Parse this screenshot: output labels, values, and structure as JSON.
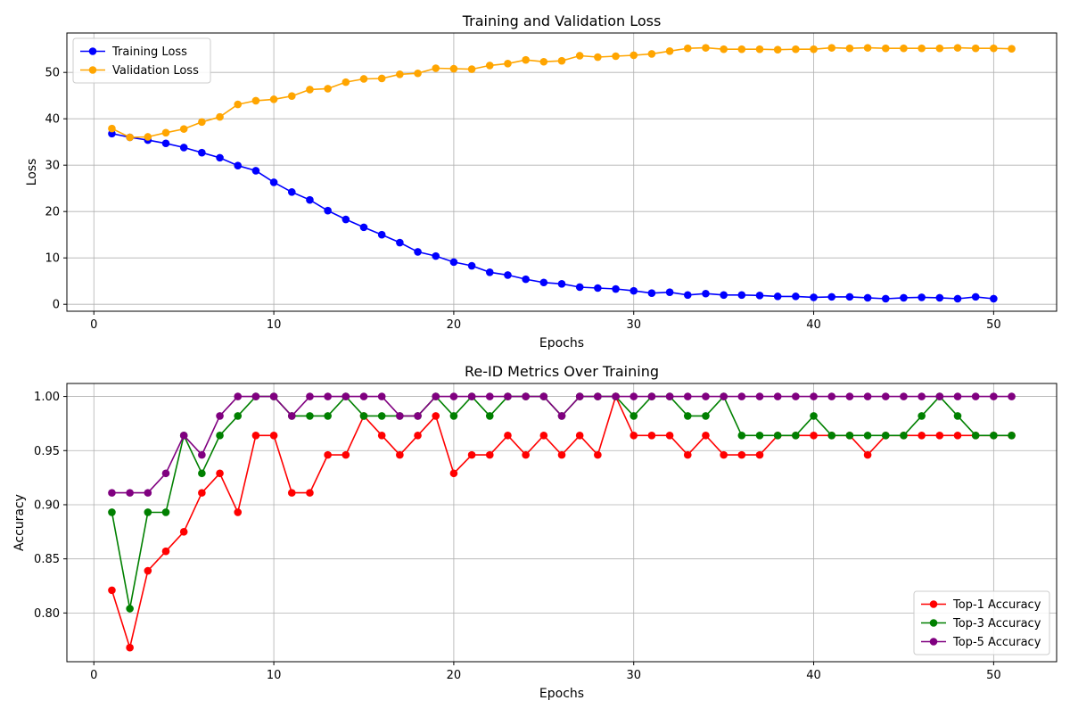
{
  "chart_data": [
    {
      "type": "line",
      "title": "Training and Validation Loss",
      "xlabel": "Epochs",
      "ylabel": "Loss",
      "xlim": [
        -1.5,
        53.5
      ],
      "ylim": [
        -1.5,
        58.5
      ],
      "xticks": [
        0,
        10,
        20,
        30,
        40,
        50
      ],
      "yticks": [
        0,
        10,
        20,
        30,
        40,
        50
      ],
      "grid": true,
      "legend": "top-left",
      "x": [
        1,
        2,
        3,
        4,
        5,
        6,
        7,
        8,
        9,
        10,
        11,
        12,
        13,
        14,
        15,
        16,
        17,
        18,
        19,
        20,
        21,
        22,
        23,
        24,
        25,
        26,
        27,
        28,
        29,
        30,
        31,
        32,
        33,
        34,
        35,
        36,
        37,
        38,
        39,
        40,
        41,
        42,
        43,
        44,
        45,
        46,
        47,
        48,
        49,
        50,
        51
      ],
      "series": [
        {
          "name": "Training Loss",
          "color": "#0000ff",
          "values": [
            36.8,
            36.0,
            35.4,
            34.7,
            33.8,
            32.7,
            31.6,
            29.9,
            28.8,
            26.3,
            24.2,
            22.5,
            20.2,
            18.3,
            16.6,
            15.0,
            13.3,
            11.3,
            10.4,
            9.1,
            8.3,
            6.9,
            6.3,
            5.4,
            4.7,
            4.4,
            3.7,
            3.5,
            3.3,
            2.9,
            2.4,
            2.6,
            2.0,
            2.3,
            2.0,
            2.0,
            1.9,
            1.7,
            1.7,
            1.5,
            1.6,
            1.6,
            1.4,
            1.2,
            1.4,
            1.5,
            1.4,
            1.2,
            1.6,
            1.2,
            null
          ]
        },
        {
          "name": "Validation Loss",
          "color": "#ffa500",
          "values": [
            37.9,
            36.0,
            36.1,
            37.0,
            37.8,
            39.3,
            40.4,
            43.1,
            43.9,
            44.2,
            44.9,
            46.3,
            46.5,
            47.9,
            48.6,
            48.7,
            49.6,
            49.8,
            50.9,
            50.8,
            50.7,
            51.5,
            51.9,
            52.7,
            52.3,
            52.5,
            53.6,
            53.3,
            53.5,
            53.7,
            54.0,
            54.6,
            55.2,
            55.3,
            55.0,
            55.0,
            55.0,
            54.9,
            55.0,
            55.0,
            55.3,
            55.2,
            55.3,
            55.2,
            55.2,
            55.2,
            55.2,
            55.3,
            55.2,
            55.2,
            55.1
          ]
        }
      ]
    },
    {
      "type": "line",
      "title": "Re-ID Metrics Over Training",
      "xlabel": "Epochs",
      "ylabel": "Accuracy",
      "xlim": [
        -1.5,
        53.5
      ],
      "ylim": [
        0.755,
        1.012
      ],
      "xticks": [
        0,
        10,
        20,
        30,
        40,
        50
      ],
      "yticks": [
        0.8,
        0.85,
        0.9,
        0.95,
        1.0
      ],
      "ytick_labels": [
        "0.80",
        "0.85",
        "0.90",
        "0.95",
        "1.00"
      ],
      "grid": true,
      "legend": "bottom-right",
      "x": [
        1,
        2,
        3,
        4,
        5,
        6,
        7,
        8,
        9,
        10,
        11,
        12,
        13,
        14,
        15,
        16,
        17,
        18,
        19,
        20,
        21,
        22,
        23,
        24,
        25,
        26,
        27,
        28,
        29,
        30,
        31,
        32,
        33,
        34,
        35,
        36,
        37,
        38,
        39,
        40,
        41,
        42,
        43,
        44,
        45,
        46,
        47,
        48,
        49,
        50,
        51
      ],
      "series": [
        {
          "name": "Top-1 Accuracy",
          "color": "#ff0000",
          "values": [
            0.821,
            0.768,
            0.839,
            0.857,
            0.875,
            0.911,
            0.929,
            0.893,
            0.964,
            0.964,
            0.911,
            0.911,
            0.946,
            0.946,
            0.982,
            0.964,
            0.946,
            0.964,
            0.982,
            0.929,
            0.946,
            0.946,
            0.964,
            0.946,
            0.964,
            0.946,
            0.964,
            0.946,
            1.0,
            0.964,
            0.964,
            0.964,
            0.946,
            0.964,
            0.946,
            0.946,
            0.946,
            0.964,
            0.964,
            0.964,
            0.964,
            0.964,
            0.946,
            0.964,
            0.964,
            0.964,
            0.964,
            0.964,
            0.964,
            0.964,
            0.964
          ]
        },
        {
          "name": "Top-3 Accuracy",
          "color": "#008000",
          "values": [
            0.893,
            0.804,
            0.893,
            0.893,
            0.964,
            0.929,
            0.964,
            0.982,
            1.0,
            1.0,
            0.982,
            0.982,
            0.982,
            1.0,
            0.982,
            0.982,
            0.982,
            0.982,
            1.0,
            0.982,
            1.0,
            0.982,
            1.0,
            1.0,
            1.0,
            0.982,
            1.0,
            1.0,
            1.0,
            0.982,
            1.0,
            1.0,
            0.982,
            0.982,
            1.0,
            0.964,
            0.964,
            0.964,
            0.964,
            0.982,
            0.964,
            0.964,
            0.964,
            0.964,
            0.964,
            0.982,
            1.0,
            0.982,
            0.964,
            0.964,
            0.964
          ]
        },
        {
          "name": "Top-5 Accuracy",
          "color": "#800080",
          "values": [
            0.911,
            0.911,
            0.911,
            0.929,
            0.964,
            0.946,
            0.982,
            1.0,
            1.0,
            1.0,
            0.982,
            1.0,
            1.0,
            1.0,
            1.0,
            1.0,
            0.982,
            0.982,
            1.0,
            1.0,
            1.0,
            1.0,
            1.0,
            1.0,
            1.0,
            0.982,
            1.0,
            1.0,
            1.0,
            1.0,
            1.0,
            1.0,
            1.0,
            1.0,
            1.0,
            1.0,
            1.0,
            1.0,
            1.0,
            1.0,
            1.0,
            1.0,
            1.0,
            1.0,
            1.0,
            1.0,
            1.0,
            1.0,
            1.0,
            1.0,
            1.0
          ]
        }
      ]
    }
  ]
}
